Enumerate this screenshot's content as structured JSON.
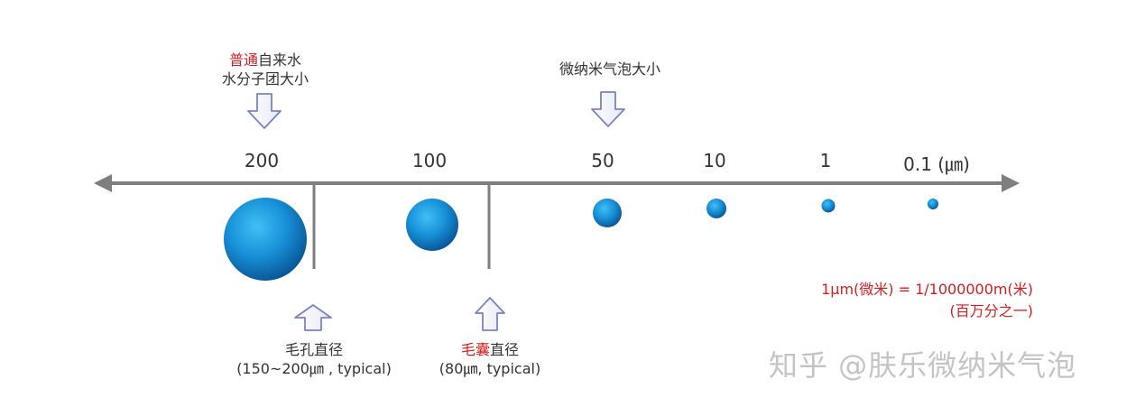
{
  "ticks": [
    "200",
    "100",
    "50",
    "10",
    "1",
    "0.1 (㎛)"
  ],
  "top_notes": {
    "tap_water_prefix": "普通",
    "tap_water_suffix": "自来水",
    "tap_water_line2": "水分子团大小",
    "micro_bubble": "微纳米气泡大小"
  },
  "bottom_notes": {
    "pore_line1": "毛孔直径",
    "pore_line2": "(150~200㎛ , typical)",
    "follicle_prefix": "毛囊",
    "follicle_suffix": "直径",
    "follicle_line2": "(80㎛, typical)"
  },
  "unit_note": {
    "line1": "1μm(微米) =  1/1000000m(米)",
    "line2": "(百万分之一)"
  },
  "watermark": "知乎 @肤乐微纳米气泡",
  "colors": {
    "axis": "#7f7f7f",
    "bubble_light": "#3fb4f0",
    "bubble_dark": "#0a5fa0",
    "accent_red": "#d11f1f",
    "arrow_stroke": "#7a84c0"
  }
}
